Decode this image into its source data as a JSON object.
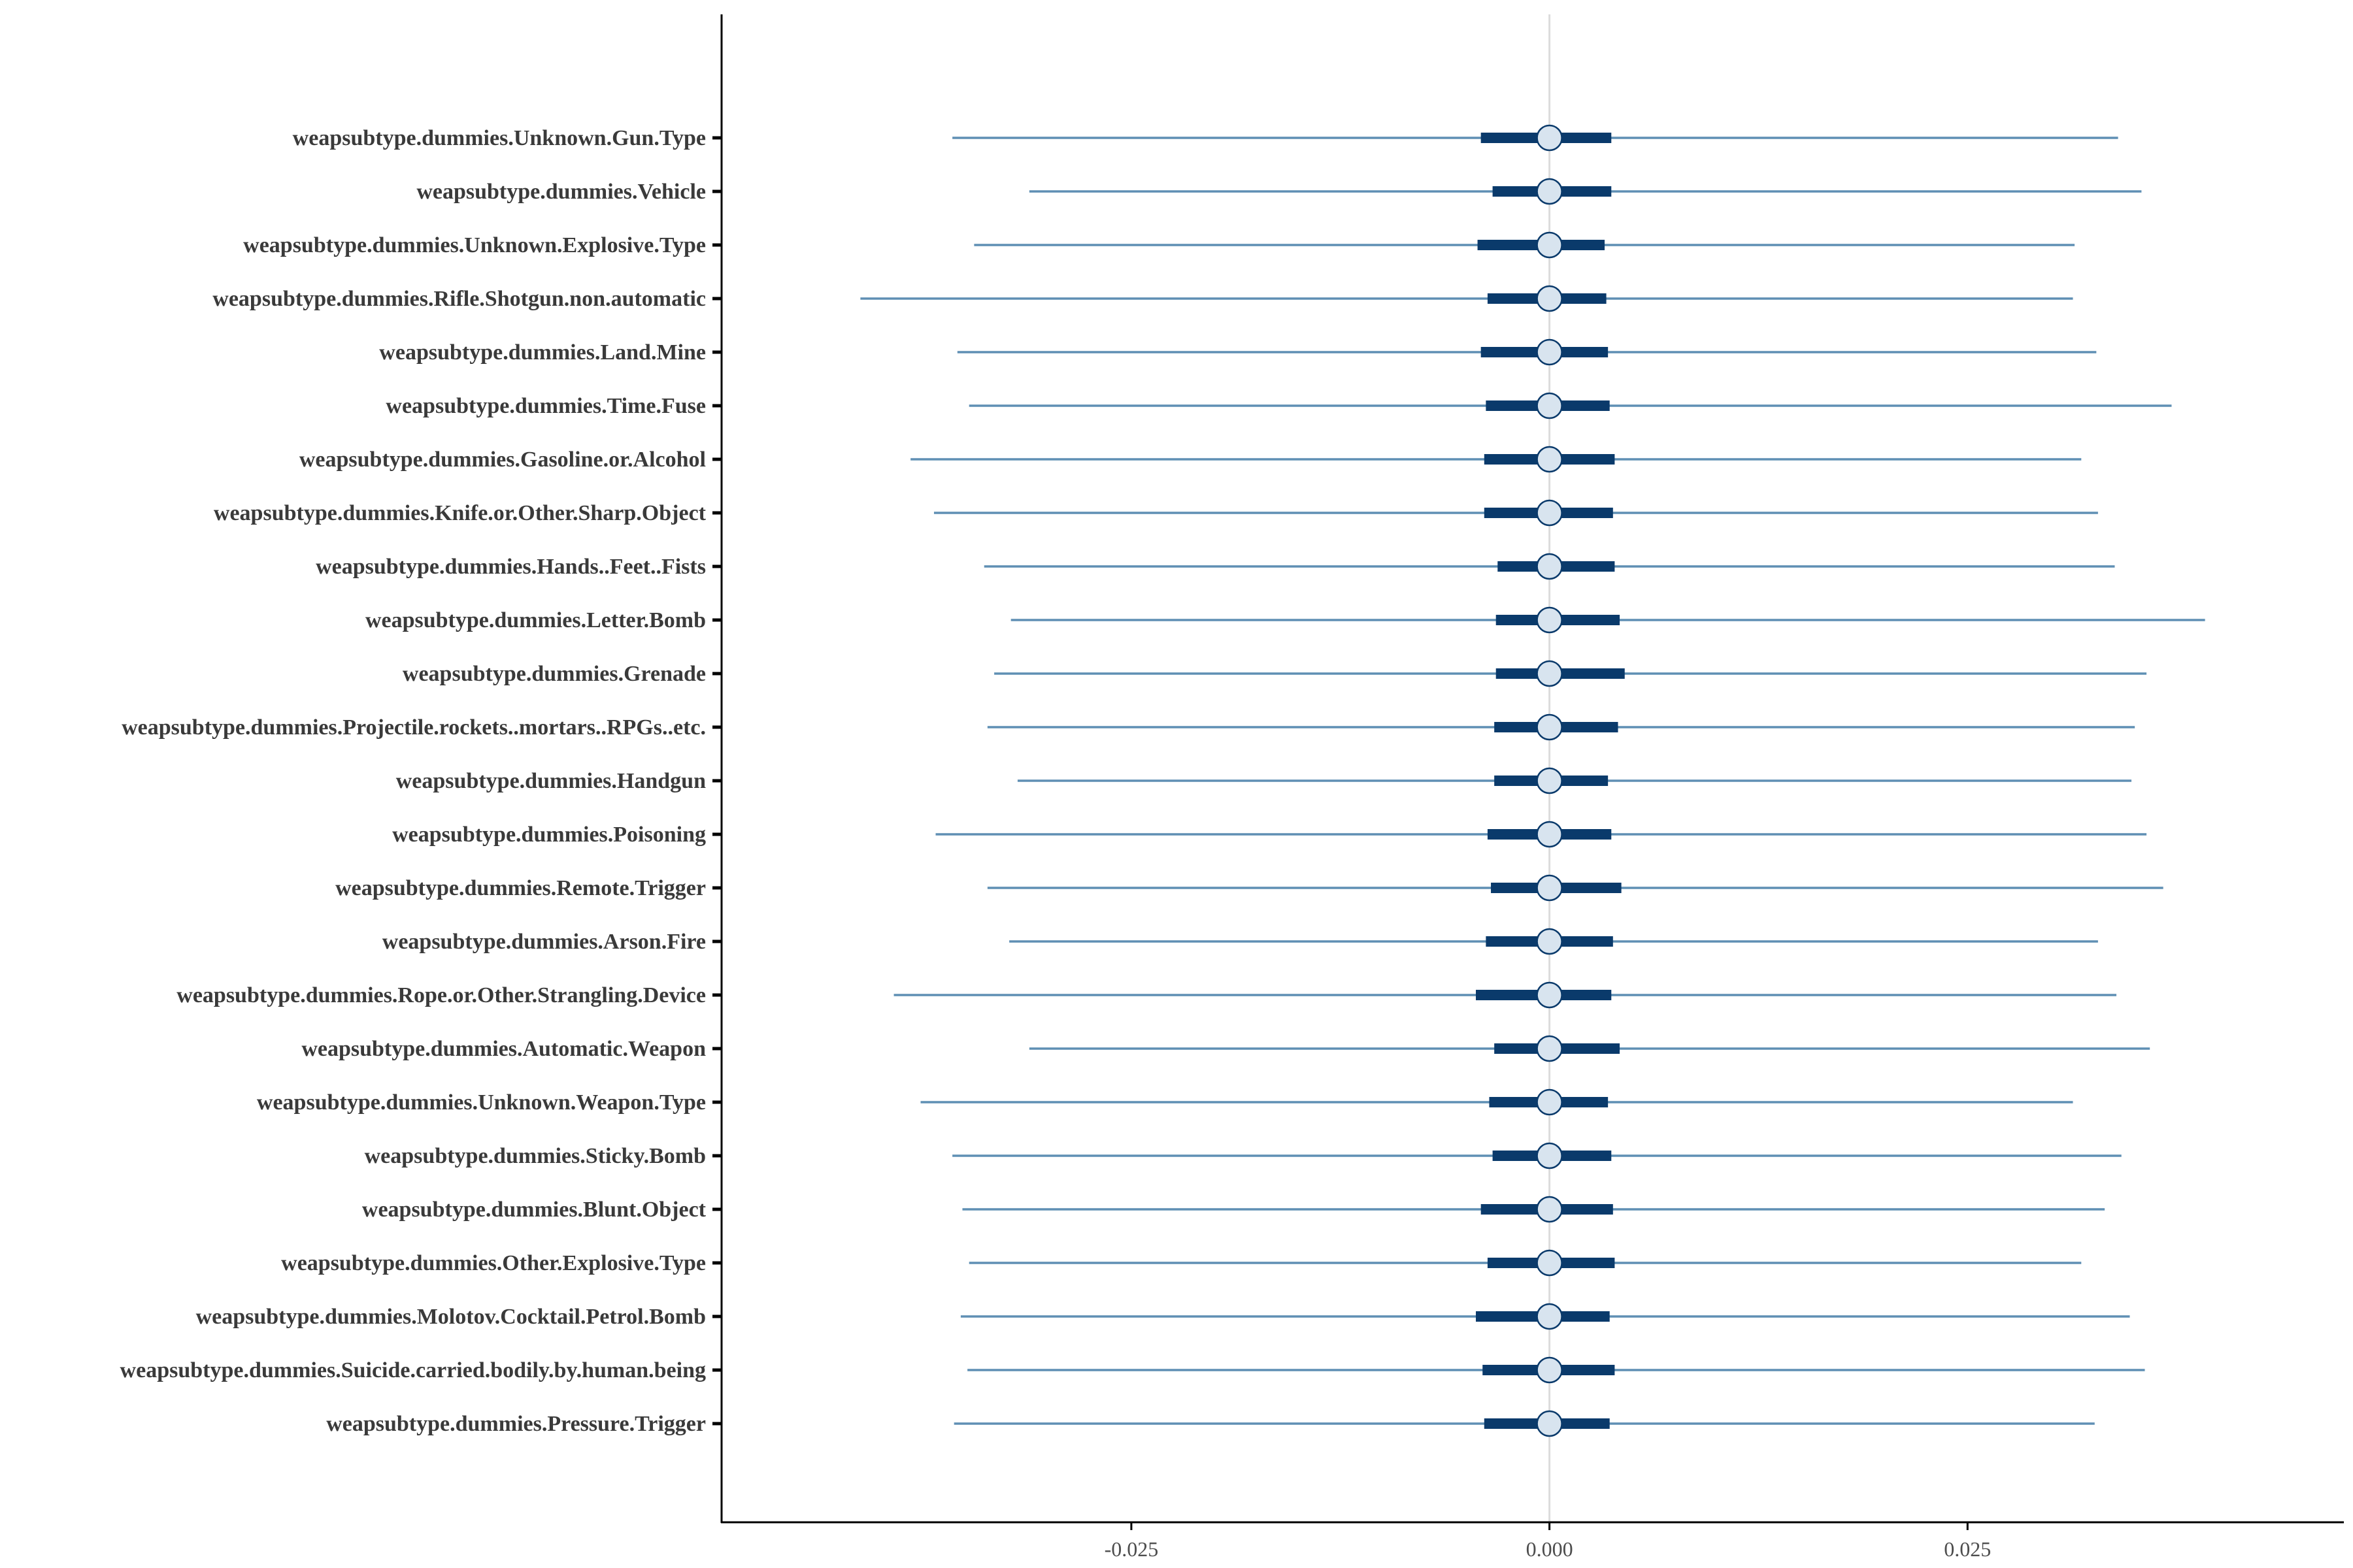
{
  "chart_data": {
    "type": "interval",
    "title": "",
    "xlabel": "",
    "ylabel": "",
    "xlim": [
      -0.0495,
      0.0475
    ],
    "x_ticks": [
      -0.025,
      0.0,
      0.025
    ],
    "x_tick_labels": [
      "-0.025",
      "0.000",
      "0.025"
    ],
    "zero_line": 0.0,
    "grid": false,
    "legend": "none",
    "colors": {
      "outer_interval": "#5f8fb4",
      "inner_interval": "#0a3a6b",
      "point_fill": "#d8e4ef",
      "point_stroke": "#0a3a6b",
      "zero_line": "#dcdcdc",
      "axis": "#000000",
      "label_text": "#3a3a3a"
    },
    "rows": [
      {
        "label": "weapsubtype.dummies.Unknown.Gun.Type",
        "estimate": 0.0,
        "inner": [
          -0.0041,
          0.0037
        ],
        "outer": [
          -0.0357,
          0.034
        ]
      },
      {
        "label": "weapsubtype.dummies.Vehicle",
        "estimate": 0.0,
        "inner": [
          -0.0034,
          0.0037
        ],
        "outer": [
          -0.0311,
          0.0354
        ]
      },
      {
        "label": "weapsubtype.dummies.Unknown.Explosive.Type",
        "estimate": 0.0,
        "inner": [
          -0.0043,
          0.0033
        ],
        "outer": [
          -0.0344,
          0.0314
        ]
      },
      {
        "label": "weapsubtype.dummies.Rifle.Shotgun.non.automatic",
        "estimate": 0.0,
        "inner": [
          -0.0037,
          0.0034
        ],
        "outer": [
          -0.0412,
          0.0313
        ]
      },
      {
        "label": "weapsubtype.dummies.Land.Mine",
        "estimate": 0.0,
        "inner": [
          -0.0041,
          0.0035
        ],
        "outer": [
          -0.0354,
          0.0327
        ]
      },
      {
        "label": "weapsubtype.dummies.Time.Fuse",
        "estimate": 0.0,
        "inner": [
          -0.0038,
          0.0036
        ],
        "outer": [
          -0.0347,
          0.0372
        ]
      },
      {
        "label": "weapsubtype.dummies.Gasoline.or.Alcohol",
        "estimate": 0.0,
        "inner": [
          -0.0039,
          0.0039
        ],
        "outer": [
          -0.0382,
          0.0318
        ]
      },
      {
        "label": "weapsubtype.dummies.Knife.or.Other.Sharp.Object",
        "estimate": 0.0,
        "inner": [
          -0.0039,
          0.0038
        ],
        "outer": [
          -0.0368,
          0.0328
        ]
      },
      {
        "label": "weapsubtype.dummies.Hands..Feet..Fists",
        "estimate": 0.0,
        "inner": [
          -0.0031,
          0.0039
        ],
        "outer": [
          -0.0338,
          0.0338
        ]
      },
      {
        "label": "weapsubtype.dummies.Letter.Bomb",
        "estimate": 0.0,
        "inner": [
          -0.0032,
          0.0042
        ],
        "outer": [
          -0.0322,
          0.0392
        ]
      },
      {
        "label": "weapsubtype.dummies.Grenade",
        "estimate": 0.0,
        "inner": [
          -0.0032,
          0.0045
        ],
        "outer": [
          -0.0332,
          0.0357
        ]
      },
      {
        "label": "weapsubtype.dummies.Projectile.rockets..mortars..RPGs..etc.",
        "estimate": 0.0,
        "inner": [
          -0.0033,
          0.0041
        ],
        "outer": [
          -0.0336,
          0.035
        ]
      },
      {
        "label": "weapsubtype.dummies.Handgun",
        "estimate": 0.0,
        "inner": [
          -0.0033,
          0.0035
        ],
        "outer": [
          -0.0318,
          0.0348
        ]
      },
      {
        "label": "weapsubtype.dummies.Poisoning",
        "estimate": 0.0,
        "inner": [
          -0.0037,
          0.0037
        ],
        "outer": [
          -0.0367,
          0.0357
        ]
      },
      {
        "label": "weapsubtype.dummies.Remote.Trigger",
        "estimate": 0.0,
        "inner": [
          -0.0035,
          0.0043
        ],
        "outer": [
          -0.0336,
          0.0367
        ]
      },
      {
        "label": "weapsubtype.dummies.Arson.Fire",
        "estimate": 0.0,
        "inner": [
          -0.0038,
          0.0038
        ],
        "outer": [
          -0.0323,
          0.0328
        ]
      },
      {
        "label": "weapsubtype.dummies.Rope.or.Other.Strangling.Device",
        "estimate": 0.0,
        "inner": [
          -0.0044,
          0.0037
        ],
        "outer": [
          -0.0392,
          0.0339
        ]
      },
      {
        "label": "weapsubtype.dummies.Automatic.Weapon",
        "estimate": 0.0,
        "inner": [
          -0.0033,
          0.0042
        ],
        "outer": [
          -0.0311,
          0.0359
        ]
      },
      {
        "label": "weapsubtype.dummies.Unknown.Weapon.Type",
        "estimate": 0.0,
        "inner": [
          -0.0036,
          0.0035
        ],
        "outer": [
          -0.0376,
          0.0313
        ]
      },
      {
        "label": "weapsubtype.dummies.Sticky.Bomb",
        "estimate": 0.0,
        "inner": [
          -0.0034,
          0.0037
        ],
        "outer": [
          -0.0357,
          0.0342
        ]
      },
      {
        "label": "weapsubtype.dummies.Blunt.Object",
        "estimate": 0.0,
        "inner": [
          -0.0041,
          0.0038
        ],
        "outer": [
          -0.0351,
          0.0332
        ]
      },
      {
        "label": "weapsubtype.dummies.Other.Explosive.Type",
        "estimate": 0.0,
        "inner": [
          -0.0037,
          0.0039
        ],
        "outer": [
          -0.0347,
          0.0318
        ]
      },
      {
        "label": "weapsubtype.dummies.Molotov.Cocktail.Petrol.Bomb",
        "estimate": 0.0,
        "inner": [
          -0.0044,
          0.0036
        ],
        "outer": [
          -0.0352,
          0.0347
        ]
      },
      {
        "label": "weapsubtype.dummies.Suicide.carried.bodily.by.human.being",
        "estimate": 0.0,
        "inner": [
          -0.004,
          0.0039
        ],
        "outer": [
          -0.0348,
          0.0356
        ]
      },
      {
        "label": "weapsubtype.dummies.Pressure.Trigger",
        "estimate": 0.0,
        "inner": [
          -0.0039,
          0.0036
        ],
        "outer": [
          -0.0356,
          0.0326
        ]
      }
    ]
  }
}
